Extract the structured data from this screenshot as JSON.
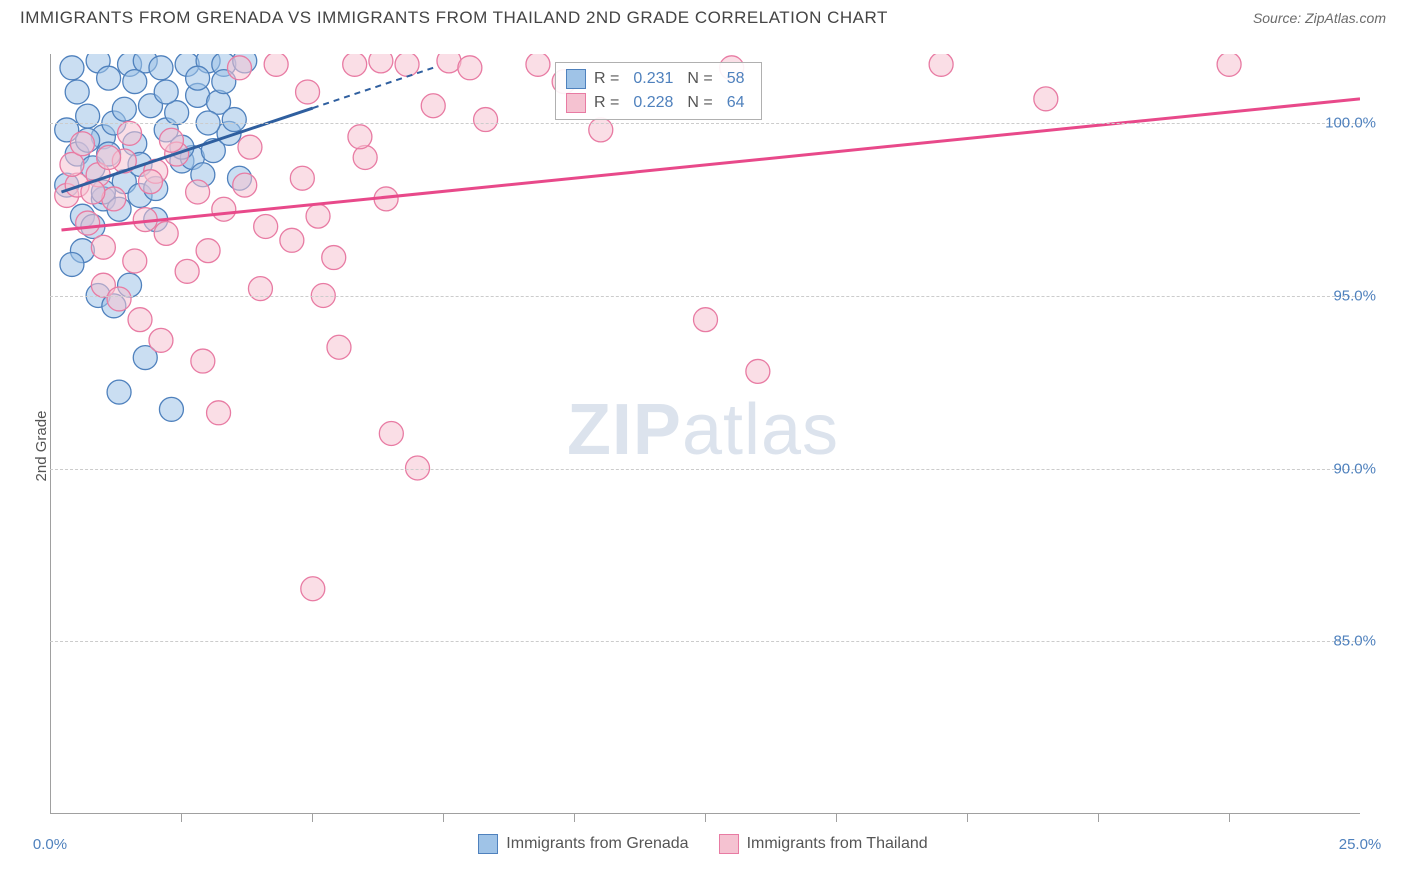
{
  "title": "IMMIGRANTS FROM GRENADA VS IMMIGRANTS FROM THAILAND 2ND GRADE CORRELATION CHART",
  "source": "Source: ZipAtlas.com",
  "ylabel": "2nd Grade",
  "watermark_bold": "ZIP",
  "watermark_light": "atlas",
  "chart": {
    "type": "scatter",
    "xlim": [
      0,
      25
    ],
    "ylim": [
      80,
      102
    ],
    "xtick_labels": [
      "0.0%",
      "25.0%"
    ],
    "xtick_positions": [
      0,
      25
    ],
    "xminor_ticks": [
      2.5,
      5,
      7.5,
      10,
      12.5,
      15,
      17.5,
      20,
      22.5
    ],
    "ytick_labels": [
      "85.0%",
      "90.0%",
      "95.0%",
      "100.0%"
    ],
    "ytick_positions": [
      85,
      90,
      95,
      100
    ],
    "grid_color": "#cccccc",
    "axis_color": "#a0a0a0",
    "background_color": "#ffffff",
    "point_radius": 12,
    "point_opacity": 0.55,
    "series": [
      {
        "name": "Immigrants from Grenada",
        "fill": "#9fc3e7",
        "stroke": "#4f81bd",
        "line_color": "#2f5f9f",
        "R": "0.231",
        "N": "58",
        "trend": {
          "x1": 0.2,
          "y1": 98.0,
          "x2": 7.3,
          "y2": 101.6,
          "dash_to": 5.0
        },
        "points": [
          [
            0.3,
            98.2
          ],
          [
            0.4,
            101.6
          ],
          [
            0.5,
            99.1
          ],
          [
            0.6,
            97.3
          ],
          [
            0.7,
            100.2
          ],
          [
            0.8,
            98.7
          ],
          [
            0.9,
            101.8
          ],
          [
            1.0,
            99.6
          ],
          [
            1.0,
            97.8
          ],
          [
            1.1,
            101.3
          ],
          [
            1.2,
            100.0
          ],
          [
            1.3,
            92.2
          ],
          [
            1.4,
            98.3
          ],
          [
            1.5,
            101.7
          ],
          [
            1.6,
            99.4
          ],
          [
            1.7,
            97.9
          ],
          [
            1.8,
            101.8
          ],
          [
            1.8,
            93.2
          ],
          [
            1.9,
            100.5
          ],
          [
            2.0,
            98.1
          ],
          [
            2.1,
            101.6
          ],
          [
            2.2,
            99.8
          ],
          [
            2.3,
            91.7
          ],
          [
            2.4,
            100.3
          ],
          [
            2.5,
            98.9
          ],
          [
            2.6,
            101.7
          ],
          [
            2.7,
            99.0
          ],
          [
            2.8,
            100.8
          ],
          [
            2.9,
            98.5
          ],
          [
            3.0,
            101.8
          ],
          [
            3.1,
            99.2
          ],
          [
            3.2,
            100.6
          ],
          [
            3.3,
            101.7
          ],
          [
            3.4,
            99.7
          ],
          [
            3.5,
            100.1
          ],
          [
            3.6,
            98.4
          ],
          [
            3.7,
            101.8
          ],
          [
            0.6,
            96.3
          ],
          [
            0.9,
            95.0
          ],
          [
            1.2,
            94.7
          ],
          [
            0.4,
            95.9
          ],
          [
            1.5,
            95.3
          ],
          [
            0.7,
            99.5
          ],
          [
            0.8,
            97.0
          ],
          [
            1.0,
            98.0
          ],
          [
            0.5,
            100.9
          ],
          [
            0.3,
            99.8
          ],
          [
            1.1,
            99.1
          ],
          [
            1.3,
            97.5
          ],
          [
            1.4,
            100.4
          ],
          [
            1.6,
            101.2
          ],
          [
            1.7,
            98.8
          ],
          [
            2.0,
            97.2
          ],
          [
            2.2,
            100.9
          ],
          [
            2.5,
            99.3
          ],
          [
            2.8,
            101.3
          ],
          [
            3.0,
            100.0
          ],
          [
            3.3,
            101.2
          ]
        ]
      },
      {
        "name": "Immigrants from Thailand",
        "fill": "#f5c2d1",
        "stroke": "#e87ba3",
        "line_color": "#e8498a",
        "R": "0.228",
        "N": "64",
        "trend": {
          "x1": 0.2,
          "y1": 96.9,
          "x2": 25.0,
          "y2": 100.7,
          "dash_to": 25.0
        },
        "points": [
          [
            0.3,
            97.9
          ],
          [
            0.5,
            98.2
          ],
          [
            0.7,
            97.1
          ],
          [
            0.9,
            98.5
          ],
          [
            1.0,
            96.4
          ],
          [
            1.2,
            97.8
          ],
          [
            1.4,
            98.9
          ],
          [
            1.6,
            96.0
          ],
          [
            1.8,
            97.2
          ],
          [
            2.0,
            98.6
          ],
          [
            2.2,
            96.8
          ],
          [
            2.4,
            99.1
          ],
          [
            2.6,
            95.7
          ],
          [
            2.8,
            98.0
          ],
          [
            3.0,
            96.3
          ],
          [
            3.3,
            97.5
          ],
          [
            3.6,
            101.6
          ],
          [
            3.8,
            99.3
          ],
          [
            4.0,
            95.2
          ],
          [
            4.3,
            101.7
          ],
          [
            4.6,
            96.6
          ],
          [
            4.9,
            100.9
          ],
          [
            5.0,
            86.5
          ],
          [
            5.2,
            95.0
          ],
          [
            5.5,
            93.5
          ],
          [
            5.8,
            101.7
          ],
          [
            6.0,
            99.0
          ],
          [
            6.3,
            101.8
          ],
          [
            6.5,
            91.0
          ],
          [
            6.8,
            101.7
          ],
          [
            7.0,
            90.0
          ],
          [
            7.3,
            100.5
          ],
          [
            7.6,
            101.8
          ],
          [
            8.0,
            101.6
          ],
          [
            8.3,
            100.1
          ],
          [
            9.3,
            101.7
          ],
          [
            9.8,
            101.2
          ],
          [
            10.5,
            99.8
          ],
          [
            12.5,
            94.3
          ],
          [
            13.0,
            101.6
          ],
          [
            13.5,
            92.8
          ],
          [
            17.0,
            101.7
          ],
          [
            19.0,
            100.7
          ],
          [
            22.5,
            101.7
          ],
          [
            1.0,
            95.3
          ],
          [
            1.3,
            94.9
          ],
          [
            1.7,
            94.3
          ],
          [
            2.1,
            93.7
          ],
          [
            2.9,
            93.1
          ],
          [
            3.2,
            91.6
          ],
          [
            3.7,
            98.2
          ],
          [
            4.1,
            97.0
          ],
          [
            4.8,
            98.4
          ],
          [
            5.1,
            97.3
          ],
          [
            5.4,
            96.1
          ],
          [
            5.9,
            99.6
          ],
          [
            6.4,
            97.8
          ],
          [
            0.4,
            98.8
          ],
          [
            0.6,
            99.4
          ],
          [
            0.8,
            98.0
          ],
          [
            1.1,
            99.0
          ],
          [
            1.5,
            99.7
          ],
          [
            1.9,
            98.3
          ],
          [
            2.3,
            99.5
          ]
        ]
      }
    ]
  },
  "legend_top": {
    "R_label": "R =",
    "N_label": "N ="
  },
  "bottom_legend": {
    "items": [
      "Immigrants from Grenada",
      "Immigrants from Thailand"
    ]
  }
}
